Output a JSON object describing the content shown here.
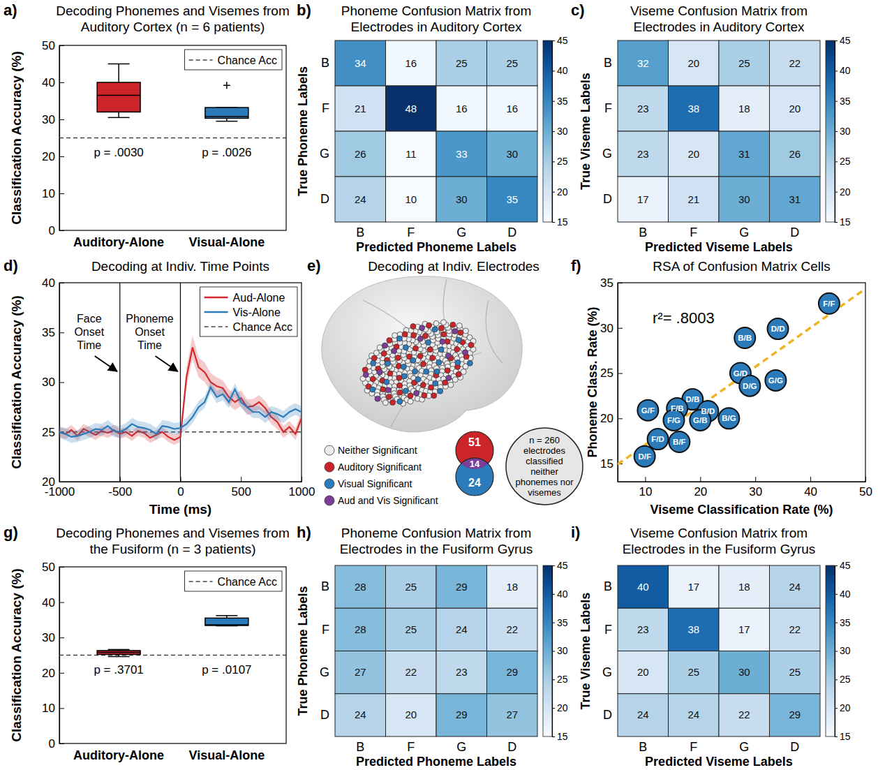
{
  "chart_data": [
    {
      "type": "box",
      "panel_label": "a)",
      "title": "Decoding Phonemes and Visemes from Auditory Cortex (n = 6 patients)",
      "ylabel": "Classification Accuracy (%)",
      "categories": [
        "Auditory-Alone",
        "Visual-Alone"
      ],
      "colors": [
        "#cc2529",
        "#2b7bba"
      ],
      "boxes": [
        {
          "whisker_low": 30.5,
          "q1": 32,
          "median": 36.5,
          "q3": 40,
          "whisker_high": 45,
          "outliers": []
        },
        {
          "whisker_low": 29.5,
          "q1": 30.3,
          "median": 30.8,
          "q3": 33.2,
          "whisker_high": 33.2,
          "outliers": [
            39.2
          ]
        }
      ],
      "p_values": [
        "p = .0030",
        "p = .0026"
      ],
      "reference_line": {
        "value": 25,
        "label": "Chance Acc"
      },
      "ylim": [
        0,
        50
      ],
      "yticks": [
        0,
        10,
        20,
        30,
        40,
        50
      ],
      "legend": "top-right"
    },
    {
      "type": "heatmap",
      "panel_label": "b)",
      "title": "Phoneme Confusion Matrix from Electrodes in Auditory Cortex",
      "xlabel": "Predicted Phoneme Labels",
      "ylabel": "True Phoneme Labels",
      "x_categories": [
        "B",
        "F",
        "G",
        "D"
      ],
      "y_categories": [
        "B",
        "F",
        "G",
        "D"
      ],
      "cells": [
        [
          34,
          16,
          25,
          25
        ],
        [
          21,
          48,
          16,
          16
        ],
        [
          26,
          11,
          33,
          30
        ],
        [
          24,
          10,
          30,
          35
        ]
      ],
      "colorbar_lim": [
        15,
        45
      ],
      "colorbar_ticks": [
        15,
        20,
        25,
        30,
        35,
        40,
        45
      ],
      "data_labels": true
    },
    {
      "type": "heatmap",
      "panel_label": "c)",
      "title": "Viseme Confusion Matrix from Electrodes in Auditory Cortex",
      "xlabel": "Predicted Viseme Labels",
      "ylabel": "True Viseme Labels",
      "x_categories": [
        "B",
        "F",
        "G",
        "D"
      ],
      "y_categories": [
        "B",
        "F",
        "G",
        "D"
      ],
      "cells": [
        [
          32,
          20,
          25,
          22
        ],
        [
          23,
          38,
          18,
          20
        ],
        [
          23,
          20,
          31,
          26
        ],
        [
          17,
          21,
          30,
          31
        ]
      ],
      "colorbar_lim": [
        15,
        45
      ],
      "colorbar_ticks": [
        15,
        20,
        25,
        30,
        35,
        40,
        45
      ],
      "data_labels": true
    },
    {
      "type": "line",
      "panel_label": "d)",
      "title": "Decoding at Indiv. Time Points",
      "xlabel": "Time (ms)",
      "ylabel": "Classification Accuracy (%)",
      "x": [
        -1000,
        -950,
        -900,
        -850,
        -800,
        -750,
        -700,
        -650,
        -600,
        -550,
        -500,
        -450,
        -400,
        -350,
        -300,
        -250,
        -200,
        -150,
        -100,
        -50,
        0,
        50,
        100,
        150,
        200,
        250,
        300,
        350,
        400,
        450,
        500,
        550,
        600,
        650,
        700,
        750,
        800,
        850,
        900,
        950,
        1000
      ],
      "series": [
        {
          "name": "Aud-Alone",
          "color": "#d42a2e",
          "values": [
            25.0,
            24.8,
            25.2,
            24.6,
            25.3,
            25.0,
            24.7,
            25.1,
            24.9,
            25.2,
            24.8,
            25.0,
            24.6,
            25.1,
            24.9,
            24.4,
            24.7,
            25.0,
            24.5,
            24.2,
            24.5,
            30.5,
            33.5,
            31.5,
            31.0,
            30.0,
            29.6,
            29.4,
            28.5,
            28.0,
            28.4,
            27.5,
            27.6,
            28.0,
            27.4,
            26.5,
            26.0,
            25.0,
            25.5,
            24.8,
            26.4
          ],
          "error": [
            0.5,
            0.5,
            0.5,
            0.5,
            0.5,
            0.5,
            0.5,
            0.5,
            0.5,
            0.5,
            0.5,
            0.5,
            0.5,
            0.5,
            0.5,
            0.5,
            0.5,
            0.5,
            0.5,
            0.5,
            0.5,
            1.0,
            1.2,
            1.0,
            1.0,
            0.9,
            0.9,
            0.8,
            0.8,
            0.8,
            0.8,
            0.8,
            0.7,
            0.7,
            0.7,
            0.7,
            0.7,
            0.6,
            0.6,
            0.6,
            0.6
          ]
        },
        {
          "name": "Vis-Alone",
          "color": "#2b7bba",
          "values": [
            25.0,
            24.8,
            24.5,
            24.6,
            24.8,
            25.0,
            25.3,
            25.2,
            25.6,
            25.1,
            25.0,
            25.3,
            25.8,
            25.5,
            25.4,
            25.2,
            24.8,
            25.6,
            25.5,
            25.3,
            25.4,
            25.8,
            26.5,
            27.5,
            28.0,
            29.5,
            28.5,
            28.8,
            28.0,
            29.3,
            28.0,
            27.5,
            27.0,
            27.0,
            26.5,
            27.0,
            26.8,
            26.5,
            27.0,
            27.3,
            27.0
          ],
          "error": [
            0.6,
            0.6,
            0.6,
            0.6,
            0.6,
            0.6,
            0.6,
            0.6,
            0.6,
            0.6,
            0.6,
            0.6,
            0.6,
            0.6,
            0.6,
            0.6,
            0.6,
            0.6,
            0.6,
            0.6,
            0.6,
            0.6,
            0.6,
            0.6,
            0.6,
            0.6,
            0.6,
            0.6,
            0.6,
            0.6,
            0.6,
            0.6,
            0.6,
            0.6,
            0.6,
            0.6,
            0.6,
            0.6,
            0.6,
            0.6,
            0.6
          ]
        }
      ],
      "reference_line": {
        "value": 25,
        "label": "Chance Acc"
      },
      "vlines": [
        {
          "value": -500,
          "label": "Face Onset Time"
        },
        {
          "value": 0,
          "label": "Phoneme Onset Time"
        }
      ],
      "xlim": [
        -1000,
        1000
      ],
      "xticks": [
        -1000,
        -500,
        0,
        500,
        1000
      ],
      "ylim": [
        20,
        40
      ],
      "yticks": [
        20,
        25,
        30,
        35,
        40
      ],
      "legend": "top-right"
    },
    {
      "type": "electrode_map",
      "panel_label": "e)",
      "title": "Decoding at Indiv. Electrodes",
      "groups": [
        {
          "name": "Neither Significant",
          "color": "#ececec",
          "count": 260
        },
        {
          "name": "Auditory Significant",
          "color": "#cc2529",
          "count": 51
        },
        {
          "name": "Visual Significant",
          "color": "#2b7bba",
          "count": 24
        },
        {
          "name": "Aud and Vis Significant",
          "color": "#7b3f98",
          "count": 14
        }
      ],
      "venn_note": "n = 260 electrodes classified neither phonemes nor visemes"
    },
    {
      "type": "scatter",
      "panel_label": "f)",
      "title": "RSA of Confusion Matrix Cells",
      "xlabel": "Viseme Classification Rate (%)",
      "ylabel": "Phoneme Class. Rate (%)",
      "annotation": "r²= .8003",
      "color": "#2b7bba",
      "point_labels": [
        "F/F",
        "B/B",
        "D/D",
        "G/D",
        "D/G",
        "G/G",
        "D/B",
        "B/D",
        "B/G",
        "F/B",
        "F/G",
        "G/B",
        "G/F",
        "F/D",
        "B/F",
        "D/F"
      ],
      "x": [
        43.4,
        28.1,
        34.1,
        27.3,
        29.0,
        33.7,
        18.6,
        21.4,
        25.2,
        15.8,
        15.2,
        20.0,
        10.5,
        12.3,
        16.2,
        9.9
      ],
      "values": [
        32.7,
        28.9,
        29.9,
        25.0,
        23.6,
        24.2,
        22.1,
        20.8,
        20.0,
        21.1,
        19.8,
        19.8,
        20.9,
        17.7,
        17.4,
        15.8
      ],
      "xlim": [
        5,
        50
      ],
      "xticks": [
        10,
        20,
        30,
        40,
        50
      ],
      "ylim": [
        13,
        35
      ],
      "yticks": [
        15,
        20,
        25,
        30,
        35
      ]
    },
    {
      "type": "box",
      "panel_label": "g)",
      "title": "Decoding Phonemes and Visemes from the Fusiform (n = 3 patients)",
      "ylabel": "Classification Accuracy (%)",
      "categories": [
        "Auditory-Alone",
        "Visual-Alone"
      ],
      "colors": [
        "#cc2529",
        "#2b7bba"
      ],
      "boxes": [
        {
          "whisker_low": 24.6,
          "q1": 25.2,
          "median": 25.8,
          "q3": 26.3,
          "whisker_high": 26.6,
          "outliers": []
        },
        {
          "whisker_low": 33.3,
          "q1": 33.4,
          "median": 33.6,
          "q3": 35.5,
          "whisker_high": 36.2,
          "outliers": []
        }
      ],
      "p_values": [
        "p = .3701",
        "p = .0107"
      ],
      "reference_line": {
        "value": 25,
        "label": "Chance Acc"
      },
      "ylim": [
        0,
        50
      ],
      "yticks": [
        0,
        10,
        20,
        30,
        40,
        50
      ],
      "legend": "top-right"
    },
    {
      "type": "heatmap",
      "panel_label": "h)",
      "title": "Phoneme Confusion Matrix from Electrodes in the Fusiform Gyrus",
      "xlabel": "Predicted Phoneme Labels",
      "ylabel": "True Phoneme Labels",
      "x_categories": [
        "B",
        "F",
        "G",
        "D"
      ],
      "y_categories": [
        "B",
        "F",
        "G",
        "D"
      ],
      "cells": [
        [
          28,
          25,
          29,
          18
        ],
        [
          28,
          25,
          24,
          22
        ],
        [
          27,
          22,
          23,
          29
        ],
        [
          24,
          20,
          29,
          27
        ]
      ],
      "colorbar_lim": [
        15,
        45
      ],
      "colorbar_ticks": [
        15,
        20,
        25,
        30,
        35,
        40,
        45
      ],
      "data_labels": true
    },
    {
      "type": "heatmap",
      "panel_label": "i)",
      "title": "Viseme Confusion Matrix from Electrodes in the Fusiform Gyrus",
      "xlabel": "Predicted Viseme Labels",
      "ylabel": "True Viseme Labels",
      "x_categories": [
        "B",
        "F",
        "G",
        "D"
      ],
      "y_categories": [
        "B",
        "F",
        "G",
        "D"
      ],
      "cells": [
        [
          40,
          17,
          18,
          24
        ],
        [
          23,
          38,
          17,
          22
        ],
        [
          20,
          25,
          30,
          25
        ],
        [
          24,
          24,
          22,
          29
        ]
      ],
      "colorbar_lim": [
        15,
        45
      ],
      "colorbar_ticks": [
        15,
        20,
        25,
        30,
        35,
        40,
        45
      ],
      "data_labels": true
    }
  ]
}
